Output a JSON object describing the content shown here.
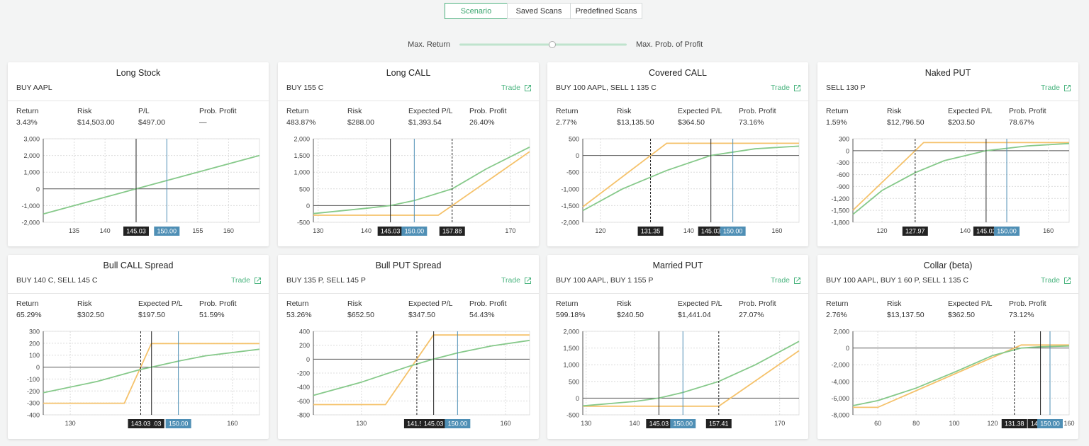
{
  "tabs": [
    "Scenario",
    "Saved Scans",
    "Predefined Scans"
  ],
  "slider": {
    "left": "Max. Return",
    "right": "Max. Prob. of Profit"
  },
  "cards": [
    {
      "title": "Long Stock",
      "legs": "BUY AAPL",
      "stats": [
        {
          "label": "Return",
          "value": "3.43%"
        },
        {
          "label": "Risk",
          "value": "$14,503.00"
        },
        {
          "label": "P/L",
          "value": "$497.00"
        },
        {
          "label": "Prob. Profit",
          "value": "—"
        }
      ],
      "chart": {
        "xlim": [
          130,
          165
        ],
        "ylim": [
          -2000,
          3000
        ],
        "xticks": [
          135,
          140,
          155,
          160
        ],
        "yticks": [
          {
            "value": 3000,
            "label": "3,000"
          },
          {
            "value": 2000,
            "label": "2,000"
          },
          {
            "value": 1000,
            "label": "1,000"
          },
          0,
          {
            "value": -1000,
            "label": "-1,000"
          },
          {
            "value": -2000,
            "label": "-2,000"
          }
        ],
        "series": [
          {
            "color": "#86c98a",
            "x": [
              130,
              165
            ],
            "values": [
              -1500,
              2000
            ]
          }
        ],
        "markers": [
          {
            "value": 145.03,
            "line": "solid",
            "color": "#222222"
          },
          {
            "value": 150,
            "label": "150.00",
            "line": "solid",
            "color": "#4f8fb5"
          }
        ]
      }
    },
    {
      "title": "Long CALL",
      "legs": "BUY 155 C",
      "trade": "Trade",
      "stats": [
        {
          "label": "Return",
          "value": "483.87%"
        },
        {
          "label": "Risk",
          "value": "$288.00"
        },
        {
          "label": "Expected P/L",
          "value": "$1,393.54"
        },
        {
          "label": "Prob. Profit",
          "value": "26.40%"
        }
      ],
      "chart": {
        "xlim": [
          129,
          174
        ],
        "ylim": [
          -500,
          2000
        ],
        "xticks": [
          130,
          140,
          170
        ],
        "yticks": [
          {
            "value": 2000,
            "label": "2,000"
          },
          {
            "value": 1500,
            "label": "1,500"
          },
          {
            "value": 1000,
            "label": "1,000"
          },
          500,
          0,
          -500
        ],
        "series": [
          {
            "color": "#f5c26b",
            "x": [
              129,
              155,
              174
            ],
            "values": [
              -288,
              -288,
              1612
            ]
          },
          {
            "color": "#86c98a",
            "x": [
              129,
              140,
              145,
              150,
              157.88,
              165,
              174
            ],
            "values": [
              -240,
              -80,
              0,
              150,
              500,
              1100,
              1750
            ]
          }
        ],
        "markers": [
          {
            "value": 145.03,
            "line": "solid",
            "color": "#222222"
          },
          {
            "value": 150,
            "label": "150.00",
            "line": "solid",
            "color": "#4f8fb5"
          },
          {
            "value": 157.88,
            "line": "dashed",
            "color": "#222222"
          }
        ]
      }
    },
    {
      "title": "Covered CALL",
      "legs": "BUY 100 AAPL, SELL 1 135 C",
      "trade": "Trade",
      "stats": [
        {
          "label": "Return",
          "value": "2.77%"
        },
        {
          "label": "Risk",
          "value": "$13,135.50"
        },
        {
          "label": "Expected P/L",
          "value": "$364.50"
        },
        {
          "label": "Prob. Profit",
          "value": "73.16%"
        }
      ],
      "chart": {
        "xlim": [
          116,
          165
        ],
        "ylim": [
          -2000,
          500
        ],
        "xticks": [
          120,
          140,
          160
        ],
        "yticks": [
          500,
          0,
          -500,
          {
            "value": -1000,
            "label": "-1,000"
          },
          {
            "value": -1500,
            "label": "-1,500"
          },
          {
            "value": -2000,
            "label": "-2,000"
          }
        ],
        "series": [
          {
            "color": "#f5c26b",
            "x": [
              116,
              135,
              165
            ],
            "values": [
              -1535,
              364.5,
              364.5
            ]
          },
          {
            "color": "#86c98a",
            "x": [
              116,
              125,
              135,
              145,
              155,
              165
            ],
            "values": [
              -1650,
              -1000,
              -450,
              0,
              200,
              280
            ]
          }
        ],
        "markers": [
          {
            "value": 131.35,
            "line": "dashed",
            "color": "#222222"
          },
          {
            "value": 145.03,
            "line": "solid",
            "color": "#222222"
          },
          {
            "value": 150,
            "label": "150.00",
            "line": "solid",
            "color": "#4f8fb5"
          }
        ]
      }
    },
    {
      "title": "Naked PUT",
      "legs": "SELL 130 P",
      "trade": "Trade",
      "stats": [
        {
          "label": "Return",
          "value": "1.59%"
        },
        {
          "label": "Risk",
          "value": "$12,796.50"
        },
        {
          "label": "Expected P/L",
          "value": "$203.50"
        },
        {
          "label": "Prob. Profit",
          "value": "78.67%"
        }
      ],
      "chart": {
        "xlim": [
          113,
          165
        ],
        "ylim": [
          -1800,
          300
        ],
        "xticks": [
          120,
          140,
          160
        ],
        "yticks": [
          300,
          0,
          -300,
          -600,
          -900,
          {
            "value": -1200,
            "label": "-1,200"
          },
          {
            "value": -1500,
            "label": "-1,500"
          },
          {
            "value": -1800,
            "label": "-1,800"
          }
        ],
        "series": [
          {
            "color": "#f5c26b",
            "x": [
              113,
              127.97,
              130,
              165
            ],
            "values": [
              -1497,
              0,
              203.5,
              203.5
            ]
          },
          {
            "color": "#86c98a",
            "x": [
              113,
              120,
              128,
              135,
              145,
              155,
              165
            ],
            "values": [
              -1600,
              -1000,
              -550,
              -250,
              0,
              120,
              180
            ]
          }
        ],
        "markers": [
          {
            "value": 127.97,
            "line": "dashed",
            "color": "#222222"
          },
          {
            "value": 145.03,
            "line": "solid",
            "color": "#222222"
          },
          {
            "value": 150,
            "label": "150.00",
            "line": "solid",
            "color": "#4f8fb5"
          }
        ]
      }
    },
    {
      "title": "Bull CALL Spread",
      "legs": "BUY 140 C, SELL 145 C",
      "trade": "Trade",
      "stats": [
        {
          "label": "Return",
          "value": "65.29%"
        },
        {
          "label": "Risk",
          "value": "$302.50"
        },
        {
          "label": "Expected P/L",
          "value": "$197.50"
        },
        {
          "label": "Prob. Profit",
          "value": "51.59%"
        }
      ],
      "chart": {
        "xlim": [
          125,
          165
        ],
        "ylim": [
          -400,
          300
        ],
        "xticks": [
          130,
          160
        ],
        "yticks": [
          300,
          200,
          100,
          0,
          -100,
          -200,
          -300,
          -400
        ],
        "series": [
          {
            "color": "#f5c26b",
            "x": [
              125,
              140,
              145,
              165
            ],
            "values": [
              -302.5,
              -302.5,
              197.5,
              197.5
            ]
          },
          {
            "color": "#86c98a",
            "x": [
              125,
              135,
              143,
              145,
              150,
              155,
              165
            ],
            "values": [
              -215,
              -120,
              -20,
              0,
              50,
              95,
              150
            ]
          }
        ],
        "markers": [
          {
            "value": 145.03,
            "line": "solid",
            "color": "#222222"
          },
          {
            "value": 143.03,
            "line": "dashed",
            "color": "#222222"
          },
          {
            "value": 150,
            "label": "150.00",
            "line": "solid",
            "color": "#4f8fb5"
          }
        ]
      }
    },
    {
      "title": "Bull PUT Spread",
      "legs": "BUY 135 P, SELL 145 P",
      "trade": "Trade",
      "stats": [
        {
          "label": "Return",
          "value": "53.26%"
        },
        {
          "label": "Risk",
          "value": "$652.50"
        },
        {
          "label": "Expected P/L",
          "value": "$347.50"
        },
        {
          "label": "Prob. Profit",
          "value": "54.43%"
        }
      ],
      "chart": {
        "xlim": [
          120,
          165
        ],
        "ylim": [
          -800,
          400
        ],
        "xticks": [
          130,
          160
        ],
        "yticks": [
          400,
          200,
          0,
          -200,
          -400,
          -600,
          -800
        ],
        "series": [
          {
            "color": "#f5c26b",
            "x": [
              120,
              135,
              145,
              165
            ],
            "values": [
              -652.5,
              -652.5,
              347.5,
              347.5
            ]
          },
          {
            "color": "#86c98a",
            "x": [
              120,
              130,
              140,
              145,
              150,
              157,
              165
            ],
            "values": [
              -520,
              -330,
              -100,
              0,
              90,
              190,
              270
            ]
          }
        ],
        "markers": [
          {
            "value": 141.53,
            "line": "dashed",
            "color": "#222222"
          },
          {
            "value": 145.03,
            "line": "solid",
            "color": "#222222"
          },
          {
            "value": 150,
            "label": "150.00",
            "line": "solid",
            "color": "#4f8fb5"
          }
        ]
      }
    },
    {
      "title": "Married PUT",
      "legs": "BUY 100 AAPL, BUY 1 155 P",
      "trade": "Trade",
      "stats": [
        {
          "label": "Return",
          "value": "599.18%"
        },
        {
          "label": "Risk",
          "value": "$240.50"
        },
        {
          "label": "Expected P/L",
          "value": "$1,441.04"
        },
        {
          "label": "Prob. Profit",
          "value": "27.07%"
        }
      ],
      "chart": {
        "xlim": [
          129.3,
          174
        ],
        "ylim": [
          -500,
          2000
        ],
        "xticks": [
          130,
          140,
          170
        ],
        "yticks": [
          {
            "value": 2000,
            "label": "2,000"
          },
          {
            "value": 1500,
            "label": "1,500"
          },
          {
            "value": 1000,
            "label": "1,000"
          },
          500,
          0,
          -500
        ],
        "series": [
          {
            "color": "#f5c26b",
            "x": [
              129.3,
              157.41,
              174
            ],
            "values": [
              -240.5,
              -240.5,
              1418.5
            ]
          },
          {
            "color": "#86c98a",
            "x": [
              129.3,
              140,
              145,
              150,
              157.41,
              165,
              174
            ],
            "values": [
              -230,
              -100,
              0,
              170,
              500,
              1000,
              1700
            ]
          }
        ],
        "markers": [
          {
            "value": 145.03,
            "line": "solid",
            "color": "#222222"
          },
          {
            "value": 150,
            "label": "150.00",
            "line": "solid",
            "color": "#4f8fb5"
          },
          {
            "value": 157.41,
            "line": "dashed",
            "color": "#222222"
          }
        ]
      }
    },
    {
      "title": "Collar (beta)",
      "legs": "BUY 100 AAPL, BUY 1 60 P, SELL 1 135 C",
      "trade": "Trade",
      "stats": [
        {
          "label": "Return",
          "value": "2.76%"
        },
        {
          "label": "Risk",
          "value": "$13,137.50"
        },
        {
          "label": "Expected P/L",
          "value": "$362.50"
        },
        {
          "label": "Prob. Profit",
          "value": "73.12%"
        }
      ],
      "chart": {
        "xlim": [
          47,
          160
        ],
        "ylim": [
          -8000,
          2000
        ],
        "xticks": [
          60,
          80,
          100,
          120,
          160
        ],
        "yticks": [
          {
            "value": 2000,
            "label": "2,000"
          },
          0,
          {
            "value": -2000,
            "label": "-2,000"
          },
          {
            "value": -4000,
            "label": "-4,000"
          },
          {
            "value": -6000,
            "label": "-6,000"
          },
          {
            "value": -8000,
            "label": "-8,000"
          }
        ],
        "series": [
          {
            "color": "#f5c26b",
            "x": [
              47,
              60,
              135,
              160
            ],
            "values": [
              -7100,
              -7100,
              362.5,
              362.5
            ]
          },
          {
            "color": "#86c98a",
            "x": [
              47,
              60,
              80,
              100,
              120,
              135,
              145,
              160
            ],
            "values": [
              -6900,
              -6300,
              -4800,
              -2900,
              -900,
              0,
              150,
              250
            ]
          }
        ],
        "markers": [
          {
            "value": 131.38,
            "line": "dashed",
            "color": "#222222"
          },
          {
            "value": 145.03,
            "line": "solid",
            "color": "#222222"
          },
          {
            "value": 150,
            "label": "150.00",
            "line": "solid",
            "color": "#4f8fb5"
          }
        ]
      }
    }
  ]
}
